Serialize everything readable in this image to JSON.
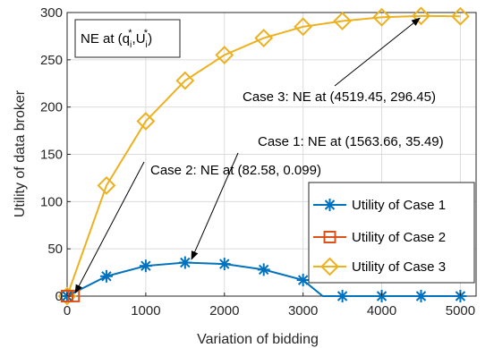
{
  "chart_data": {
    "type": "line",
    "xlabel": "Variation of bidding",
    "ylabel": "Utility of data broker",
    "xlim": [
      0,
      5200
    ],
    "ylim": [
      0,
      300
    ],
    "xticks": [
      0,
      1000,
      2000,
      3000,
      4000,
      5000
    ],
    "yticks": [
      0,
      50,
      100,
      150,
      200,
      250,
      300
    ],
    "grid": true,
    "legend_position": "bottom-right",
    "series": [
      {
        "name": "Utility of Case 1",
        "color": "#0072BD",
        "marker": "asterisk",
        "x": [
          0,
          500,
          1000,
          1500,
          2000,
          2500,
          3000,
          3250,
          3500,
          4000,
          4500,
          5000
        ],
        "y": [
          0,
          21,
          32,
          35.5,
          34,
          28,
          17,
          0,
          0,
          0,
          0,
          0
        ],
        "marker_x": [
          0,
          500,
          1000,
          1500,
          2000,
          2500,
          3000,
          3500,
          4000,
          4500,
          5000
        ]
      },
      {
        "name": "Utility of Case 2",
        "color": "#D95319",
        "marker": "square",
        "x": [
          0,
          82.58
        ],
        "y": [
          0,
          0.099
        ],
        "marker_x": [
          0,
          82.58
        ]
      },
      {
        "name": "Utility of Case 3",
        "color": "#EDB120",
        "marker": "diamond",
        "x": [
          0,
          500,
          1000,
          1500,
          2000,
          2500,
          3000,
          3500,
          4000,
          4500,
          5000
        ],
        "y": [
          0,
          117,
          185,
          228,
          255,
          273,
          285,
          291,
          295,
          296.4,
          296
        ],
        "marker_x": [
          0,
          500,
          1000,
          1500,
          2000,
          2500,
          3000,
          3500,
          4000,
          4500,
          5000
        ]
      }
    ],
    "annotations": [
      {
        "text": "Case 3: NE at (4519.45, 296.45)",
        "point": [
          4519.45,
          296.45
        ]
      },
      {
        "text": "Case 1: NE at (1563.66, 35.49)",
        "point": [
          1563.66,
          35.49
        ]
      },
      {
        "text": "Case 2: NE at (82.58, 0.099)",
        "point": [
          82.58,
          0.099
        ]
      }
    ],
    "ne_box": {
      "prefix": "NE at (q",
      "sub_i": "i",
      "sup_star": "*",
      "mid": ",U",
      "suffix": ")"
    }
  }
}
